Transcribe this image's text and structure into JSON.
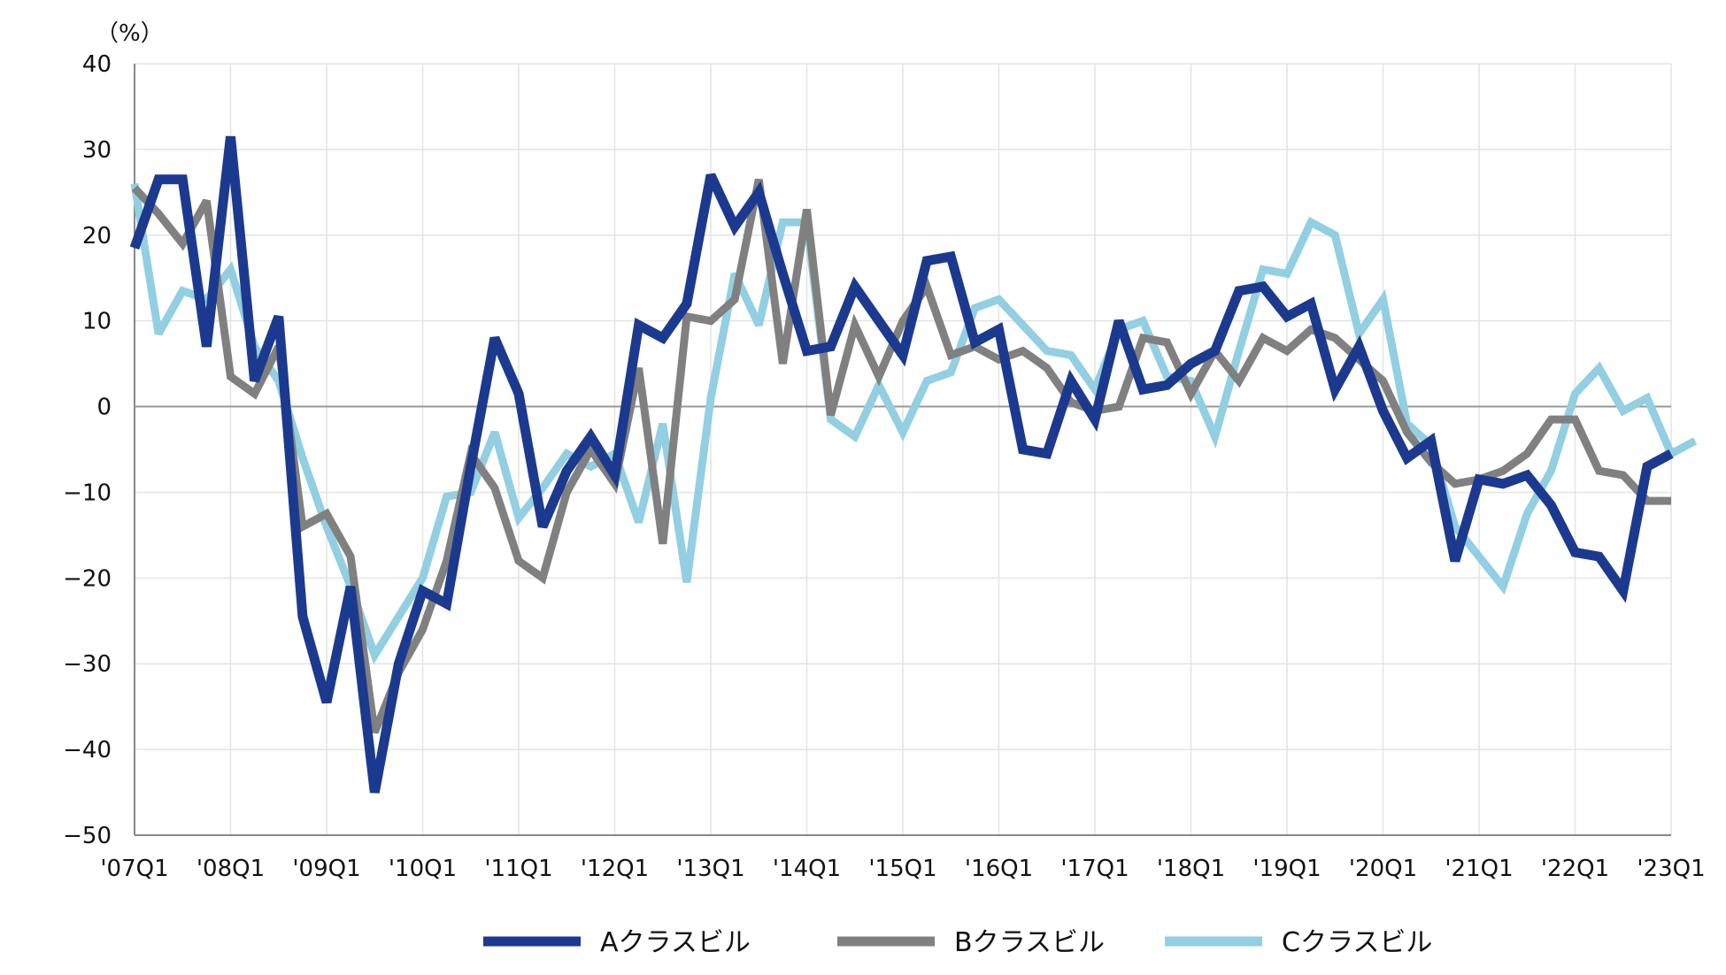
{
  "chart_data": {
    "type": "line",
    "title": "",
    "unit_label": "（%）",
    "ylim": [
      -50,
      40
    ],
    "yticks": [
      40,
      30,
      20,
      10,
      0,
      -10,
      -20,
      -30,
      -40,
      -50
    ],
    "ytick_labels": [
      "40",
      "30",
      "20",
      "10",
      "0",
      "−10",
      "−20",
      "−30",
      "−40",
      "−50"
    ],
    "x_tick_labels": [
      "'07Q1",
      "'08Q1",
      "'09Q1",
      "'10Q1",
      "'11Q1",
      "'12Q1",
      "'13Q1",
      "'14Q1",
      "'15Q1",
      "'16Q1",
      "'17Q1",
      "'18Q1",
      "'19Q1",
      "'20Q1",
      "'21Q1",
      "'22Q1",
      "'23Q1"
    ],
    "x_count": 65,
    "grid": true,
    "legend_position": "bottom",
    "series": [
      {
        "name": "Aクラスビル",
        "color": "#1b3a8f",
        "values": [
          18.5,
          26.5,
          26.5,
          7,
          31.5,
          3,
          10.5,
          -24.5,
          -34.5,
          -21,
          -45,
          -30,
          -21.5,
          -23,
          -7,
          8,
          1.5,
          -14,
          -7.5,
          -3.5,
          -8,
          9.5,
          8,
          12,
          27,
          21,
          25,
          15.5,
          6.5,
          7,
          14,
          10,
          6,
          17,
          17.5,
          7.5,
          9,
          -5,
          -5.5,
          3,
          -1.5,
          10,
          2,
          2.5,
          5,
          6.5,
          13.5,
          14,
          10.5,
          12,
          2,
          7,
          -0.5,
          -6,
          -4,
          -18,
          -8.5,
          -9,
          -8,
          -11.5,
          -17,
          -17.5,
          -21.5,
          -7,
          -5.5
        ]
      },
      {
        "name": "Bクラスビル",
        "color": "#808080",
        "values": [
          25.5,
          22.5,
          19,
          24,
          3.5,
          1.5,
          7,
          -14,
          -12.5,
          -17.5,
          -38,
          -31,
          -26,
          -18,
          -5.5,
          -9.5,
          -18,
          -20,
          -10,
          -5,
          -9,
          4.5,
          -16,
          10.5,
          10,
          12.5,
          26.5,
          5,
          23,
          -1,
          9.5,
          3.5,
          10,
          14,
          6,
          7,
          5.5,
          6.5,
          4.5,
          0.5,
          -0.5,
          0,
          8,
          7.5,
          1.5,
          6.5,
          3,
          8,
          6.5,
          9,
          8,
          5.5,
          3,
          -3,
          -6.5,
          -9,
          -8.5,
          -7.5,
          -5.5,
          -1.5,
          -1.5,
          -7.5,
          -8,
          -11,
          -11
        ]
      },
      {
        "name": "Cクラスビル",
        "color": "#92cfe2",
        "values": [
          26,
          8.5,
          13.5,
          12.5,
          16,
          7,
          3,
          -6,
          -14,
          -21,
          -29,
          -24.5,
          -20,
          -10.5,
          -10,
          -3,
          -13,
          -9.5,
          -5.5,
          -7,
          -5.5,
          -13.5,
          -2,
          -20.5,
          1,
          15.5,
          9.5,
          21.5,
          21.5,
          -1.5,
          -3.5,
          2.5,
          -3,
          3,
          4,
          11.5,
          12.5,
          9.5,
          6.5,
          6,
          2,
          9,
          10,
          3.5,
          3,
          -3.5,
          6.5,
          16,
          15.5,
          21.5,
          20,
          8.5,
          12.5,
          -2,
          -4.5,
          -14,
          -17.5,
          -21,
          -12.5,
          -7.5,
          1.5,
          4.5,
          -0.5,
          1,
          -5.5,
          -4
        ]
      }
    ]
  }
}
